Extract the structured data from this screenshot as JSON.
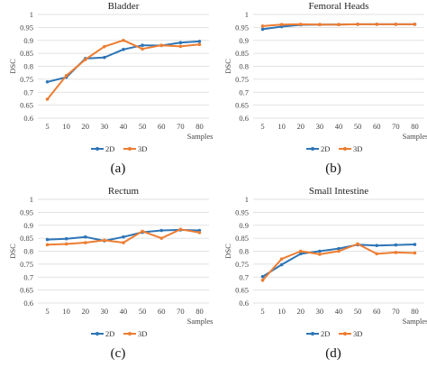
{
  "chart_data": [
    {
      "type": "line",
      "title": "Bladder",
      "caption": "(a)",
      "ylabel": "DSC",
      "xlabel": "Samples",
      "categories": [
        "5",
        "10",
        "20",
        "30",
        "40",
        "50",
        "60",
        "70",
        "80"
      ],
      "yticks": [
        "0.6",
        "0.65",
        "0.7",
        "0.75",
        "0.8",
        "0.85",
        "0.9",
        "0.95",
        "1"
      ],
      "ylim": [
        0.6,
        1.0
      ],
      "grid": true,
      "legend_position": "bottom",
      "series": [
        {
          "name": "2D",
          "color": "#2e75b6",
          "values": [
            0.74,
            0.758,
            0.83,
            0.834,
            0.865,
            0.881,
            0.88,
            0.891,
            0.896
          ]
        },
        {
          "name": "3D",
          "color": "#ed7d31",
          "values": [
            0.673,
            0.764,
            0.826,
            0.876,
            0.9,
            0.867,
            0.881,
            0.877,
            0.884
          ]
        }
      ]
    },
    {
      "type": "line",
      "title": "Femoral Heads",
      "caption": "(b)",
      "ylabel": "DSC",
      "xlabel": "Samples",
      "categories": [
        "5",
        "10",
        "20",
        "30",
        "40",
        "50",
        "60",
        "70",
        "80"
      ],
      "yticks": [
        "0.6",
        "0.65",
        "0.7",
        "0.75",
        "0.8",
        "0.85",
        "0.9",
        "0.95",
        "1"
      ],
      "ylim": [
        0.6,
        1.0
      ],
      "grid": true,
      "legend_position": "bottom",
      "series": [
        {
          "name": "2D",
          "color": "#2e75b6",
          "values": [
            0.943,
            0.953,
            0.96,
            0.961,
            0.961,
            0.962,
            0.962,
            0.962,
            0.962
          ]
        },
        {
          "name": "3D",
          "color": "#ed7d31",
          "values": [
            0.955,
            0.961,
            0.962,
            0.961,
            0.961,
            0.962,
            0.962,
            0.962,
            0.962
          ]
        }
      ]
    },
    {
      "type": "line",
      "title": "Rectum",
      "caption": "(c)",
      "ylabel": "DSC",
      "xlabel": "Samples",
      "categories": [
        "5",
        "10",
        "20",
        "30",
        "40",
        "50",
        "60",
        "70",
        "80"
      ],
      "yticks": [
        "0.6",
        "0.65",
        "0.7",
        "0.75",
        "0.8",
        "0.85",
        "0.9",
        "0.95",
        "1"
      ],
      "ylim": [
        0.6,
        1.0
      ],
      "grid": true,
      "legend_position": "bottom",
      "series": [
        {
          "name": "2D",
          "color": "#2e75b6",
          "values": [
            0.845,
            0.848,
            0.855,
            0.84,
            0.855,
            0.873,
            0.88,
            0.882,
            0.88
          ]
        },
        {
          "name": "3D",
          "color": "#ed7d31",
          "values": [
            0.825,
            0.828,
            0.833,
            0.842,
            0.833,
            0.877,
            0.85,
            0.884,
            0.872
          ]
        }
      ]
    },
    {
      "type": "line",
      "title": "Small Intestine",
      "caption": "(d)",
      "ylabel": "DSC",
      "xlabel": "Samples",
      "categories": [
        "5",
        "10",
        "20",
        "30",
        "40",
        "50",
        "60",
        "70",
        "80"
      ],
      "yticks": [
        "0.6",
        "0.65",
        "0.7",
        "0.75",
        "0.8",
        "0.85",
        "0.9",
        "0.95",
        "1"
      ],
      "ylim": [
        0.6,
        1.0
      ],
      "grid": true,
      "legend_position": "bottom",
      "series": [
        {
          "name": "2D",
          "color": "#2e75b6",
          "values": [
            0.702,
            0.748,
            0.79,
            0.8,
            0.81,
            0.825,
            0.822,
            0.824,
            0.826
          ]
        },
        {
          "name": "3D",
          "color": "#ed7d31",
          "values": [
            0.688,
            0.77,
            0.8,
            0.788,
            0.8,
            0.828,
            0.79,
            0.795,
            0.793
          ]
        }
      ]
    }
  ]
}
